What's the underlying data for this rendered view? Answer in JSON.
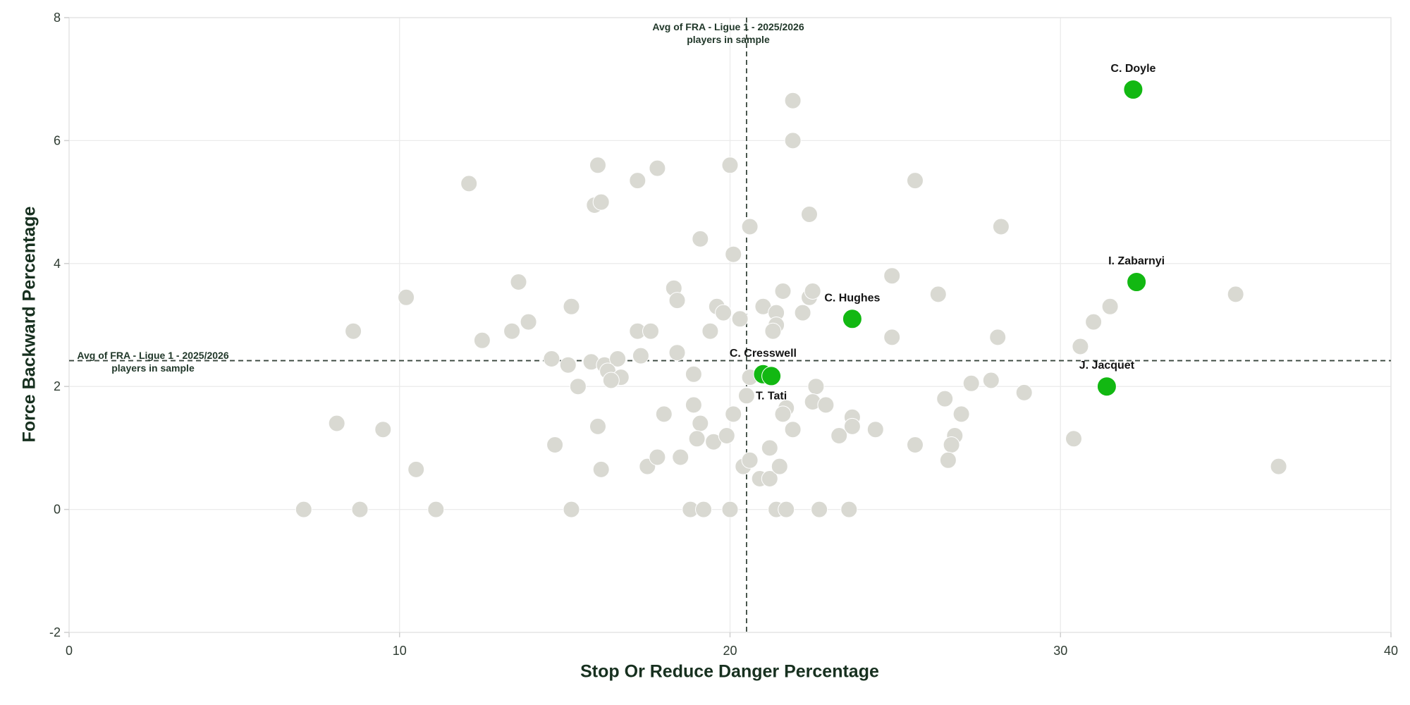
{
  "chart_data": {
    "type": "scatter",
    "xlabel": "Stop Or Reduce Danger Percentage",
    "ylabel": "Force Backward Percentage",
    "xlim": [
      0,
      40
    ],
    "ylim": [
      -2,
      8
    ],
    "x_ticks": [
      0,
      10,
      20,
      30,
      40
    ],
    "y_ticks": [
      8,
      6,
      4,
      2,
      0,
      -2
    ],
    "grid": "on",
    "avg_lines": {
      "x_value": 20.5,
      "y_value": 2.42,
      "label_line1": "Avg of FRA - Ligue 1 - 2025/2026",
      "label_line2": "players in sample"
    },
    "highlighted_players": [
      {
        "name": "C. Doyle",
        "x": 32.2,
        "y": 6.83,
        "label_pos": "above"
      },
      {
        "name": "I. Zabarnyi",
        "x": 32.3,
        "y": 3.7,
        "label_pos": "above"
      },
      {
        "name": "C. Hughes",
        "x": 23.7,
        "y": 3.1,
        "label_pos": "above"
      },
      {
        "name": "C. Cresswell",
        "x": 21.0,
        "y": 2.2,
        "label_pos": "above"
      },
      {
        "name": "T. Tati",
        "x": 21.25,
        "y": 2.17,
        "label_pos": "below"
      },
      {
        "name": "J. Jacquet",
        "x": 31.4,
        "y": 2.0,
        "label_pos": "above"
      }
    ],
    "sample_points": [
      [
        12.1,
        5.3
      ],
      [
        16,
        5.6
      ],
      [
        17.8,
        5.55
      ],
      [
        20,
        5.6
      ],
      [
        17.2,
        5.35
      ],
      [
        15.9,
        4.95
      ],
      [
        16.1,
        5
      ],
      [
        20.6,
        4.6
      ],
      [
        21.9,
        6.65
      ],
      [
        21.9,
        6
      ],
      [
        25.6,
        5.35
      ],
      [
        22.4,
        4.8
      ],
      [
        28.2,
        4.6
      ],
      [
        19.1,
        4.4
      ],
      [
        20.1,
        4.15
      ],
      [
        8.6,
        2.9
      ],
      [
        10.2,
        3.45
      ],
      [
        13.6,
        3.7
      ],
      [
        15.2,
        3.3
      ],
      [
        13.9,
        3.05
      ],
      [
        13.4,
        2.9
      ],
      [
        12.5,
        2.75
      ],
      [
        18.3,
        3.6
      ],
      [
        18.4,
        3.4
      ],
      [
        17.2,
        2.9
      ],
      [
        17.6,
        2.9
      ],
      [
        19.6,
        3.3
      ],
      [
        19.8,
        3.2
      ],
      [
        20.3,
        3.1
      ],
      [
        19.4,
        2.9
      ],
      [
        18.4,
        2.55
      ],
      [
        21.6,
        3.55
      ],
      [
        22.4,
        3.45
      ],
      [
        22.5,
        3.55
      ],
      [
        21,
        3.3
      ],
      [
        21.4,
        3.2
      ],
      [
        22.2,
        3.2
      ],
      [
        21.4,
        3
      ],
      [
        21.3,
        2.9
      ],
      [
        24.9,
        3.8
      ],
      [
        26.3,
        3.5
      ],
      [
        24.9,
        2.8
      ],
      [
        28.1,
        2.8
      ],
      [
        31,
        3.05
      ],
      [
        31.5,
        3.3
      ],
      [
        35.3,
        3.5
      ],
      [
        30.6,
        2.65
      ],
      [
        14.6,
        2.45
      ],
      [
        15.1,
        2.35
      ],
      [
        15.8,
        2.4
      ],
      [
        16.2,
        2.35
      ],
      [
        16.6,
        2.45
      ],
      [
        16.3,
        2.25
      ],
      [
        16.7,
        2.15
      ],
      [
        16.4,
        2.1
      ],
      [
        17.3,
        2.5
      ],
      [
        18.9,
        2.2
      ],
      [
        15.4,
        2
      ],
      [
        20.6,
        2.15
      ],
      [
        20.5,
        1.85
      ],
      [
        22.6,
        2
      ],
      [
        27.3,
        2.05
      ],
      [
        27.9,
        2.1
      ],
      [
        28.9,
        1.9
      ],
      [
        8.1,
        1.4
      ],
      [
        9.5,
        1.3
      ],
      [
        18,
        1.55
      ],
      [
        18.9,
        1.7
      ],
      [
        19.1,
        1.4
      ],
      [
        16,
        1.35
      ],
      [
        19,
        1.15
      ],
      [
        19.5,
        1.1
      ],
      [
        19.9,
        1.2
      ],
      [
        14.7,
        1.05
      ],
      [
        20.1,
        1.55
      ],
      [
        21.7,
        1.65
      ],
      [
        21.6,
        1.55
      ],
      [
        22.5,
        1.75
      ],
      [
        22.9,
        1.7
      ],
      [
        26.5,
        1.8
      ],
      [
        27,
        1.55
      ],
      [
        23.7,
        1.5
      ],
      [
        23.7,
        1.35
      ],
      [
        21.9,
        1.3
      ],
      [
        23.3,
        1.2
      ],
      [
        24.4,
        1.3
      ],
      [
        26.8,
        1.2
      ],
      [
        26.7,
        1.05
      ],
      [
        25.6,
        1.05
      ],
      [
        30.4,
        1.15
      ],
      [
        21.2,
        1
      ],
      [
        7.1,
        0
      ],
      [
        8.8,
        0
      ],
      [
        10.5,
        0.65
      ],
      [
        11.1,
        0
      ],
      [
        15.2,
        0
      ],
      [
        16.1,
        0.65
      ],
      [
        17.5,
        0.7
      ],
      [
        17.8,
        0.85
      ],
      [
        18.5,
        0.85
      ],
      [
        18.8,
        0
      ],
      [
        19.2,
        0
      ],
      [
        20,
        0
      ],
      [
        20.4,
        0.7
      ],
      [
        20.6,
        0.8
      ],
      [
        20.9,
        0.5
      ],
      [
        21.2,
        0.5
      ],
      [
        21.5,
        0.7
      ],
      [
        21.4,
        0
      ],
      [
        21.7,
        0
      ],
      [
        22.7,
        0
      ],
      [
        23.6,
        0
      ],
      [
        26.6,
        0.8
      ],
      [
        36.6,
        0.7
      ]
    ]
  },
  "colors": {
    "highlight_green": "#12b812",
    "sample_gray": "#d9d9d2",
    "grid": "#ebebeb",
    "border": "#e3e3e3",
    "tick_mark": "#cfcfcf",
    "dashed_line": "#38463c",
    "tick_text": "#2e3b31",
    "player_label": "#141414",
    "background": "#ffffff"
  }
}
